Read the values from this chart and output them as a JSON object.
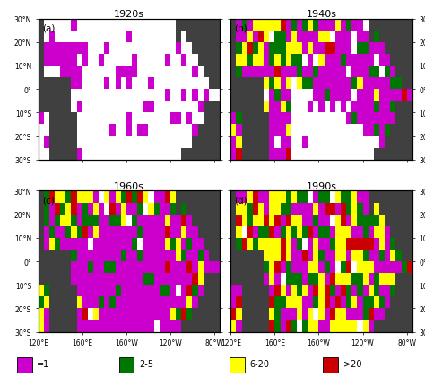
{
  "titles": [
    "1920s",
    "1940s",
    "1960s",
    "1990s"
  ],
  "panel_labels": [
    "(a)",
    "(b)",
    "(c)",
    "(d)"
  ],
  "lon_range": [
    120,
    285
  ],
  "lat_range": [
    -30,
    30
  ],
  "lon_ticks": [
    120,
    160,
    200,
    240,
    280
  ],
  "lon_labels": [
    "120°E",
    "160°E",
    "160°W",
    "120°W",
    "80°W"
  ],
  "lat_ticks": [
    -30,
    -20,
    -10,
    0,
    10,
    20,
    30
  ],
  "lat_labels_left": [
    "30°S",
    "20°S",
    "10°S",
    "0°",
    "10°N",
    "20°N",
    "30°N"
  ],
  "lat_labels_right": [
    "30°S",
    "20°S",
    "10°S",
    "0°",
    "10°N",
    "20°N",
    "30°N"
  ],
  "colors": {
    "cat1": "#CC00CC",
    "cat2": "#007700",
    "cat3": "#FFFF00",
    "cat4": "#CC0000",
    "land": "#404040",
    "nodata": "#FFFFFF",
    "ocean_bg": "#FFFFFF"
  },
  "legend_labels": [
    "=1",
    "2-5",
    "6-20",
    ">20"
  ],
  "grid_res": 5,
  "figsize": [
    4.74,
    4.31
  ],
  "dpi": 100
}
